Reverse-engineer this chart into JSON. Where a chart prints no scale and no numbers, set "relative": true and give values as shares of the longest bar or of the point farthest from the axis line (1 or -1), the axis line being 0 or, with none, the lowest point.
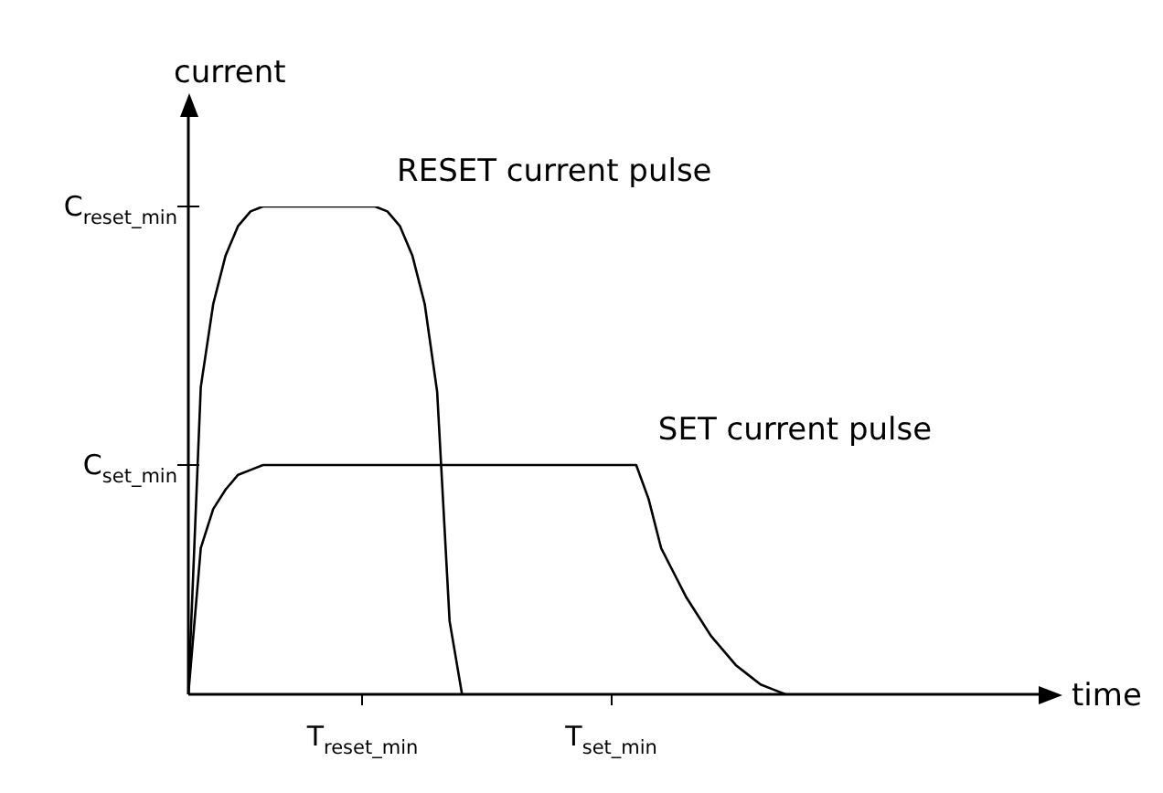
{
  "chart_data": {
    "type": "line",
    "relative": true,
    "ylabel": "current",
    "xlabel": "time",
    "marker": "none",
    "legend": false,
    "categories": [
      null,
      null,
      null,
      null,
      null,
      null,
      null,
      null,
      null,
      null,
      null,
      null,
      null,
      null,
      "T$_{reset_min}$",
      null,
      null,
      null,
      null,
      null,
      null,
      null,
      null,
      null,
      null,
      null,
      null,
      null,
      null,
      null,
      null,
      null,
      null,
      null,
      "T$_{set_min}$",
      null,
      null,
      null,
      null,
      null,
      null,
      null,
      null,
      null,
      null,
      null,
      null,
      null,
      null,
      null,
      null,
      null,
      null,
      null,
      null,
      null,
      null,
      null,
      null,
      null,
      null,
      null
    ],
    "annotations": [
      "C$_{reset_min}$",
      "C$_{set_min}$"
    ],
    "series": [
      {
        "name": "RESET current pulse",
        "color": "#000000",
        "values": [
          0,
          0.63,
          0.8,
          0.9,
          0.96,
          0.99,
          1,
          1,
          1,
          1,
          1,
          1,
          1,
          1,
          1,
          1,
          0.99,
          0.96,
          0.9,
          0.8,
          0.62,
          0.15,
          0,
          null,
          null,
          null,
          null,
          null,
          null,
          null,
          null,
          null,
          null,
          null,
          null,
          null,
          null,
          null,
          null,
          null,
          null,
          null,
          null,
          null,
          null,
          null,
          null,
          null,
          null,
          null,
          null,
          null,
          null,
          null,
          null,
          null,
          null,
          null,
          null,
          null,
          null,
          null
        ]
      },
      {
        "name": "SET current pulse",
        "color": "#000000",
        "values": [
          0,
          0.3,
          0.38,
          0.42,
          0.45,
          0.46,
          0.47,
          0.47,
          0.47,
          0.47,
          0.47,
          0.47,
          0.47,
          0.47,
          0.47,
          0.47,
          0.47,
          0.47,
          0.47,
          0.47,
          0.47,
          0.47,
          0.47,
          0.47,
          0.47,
          0.47,
          0.47,
          0.47,
          0.47,
          0.47,
          0.47,
          0.47,
          0.47,
          0.47,
          0.47,
          0.47,
          0.47,
          0.4,
          0.3,
          0.25,
          0.2,
          0.16,
          0.12,
          0.09,
          0.06,
          0.04,
          0.02,
          0.01,
          0,
          null,
          null,
          null,
          null,
          null,
          null,
          null,
          null,
          null,
          null,
          null,
          null,
          null
        ]
      }
    ]
  }
}
